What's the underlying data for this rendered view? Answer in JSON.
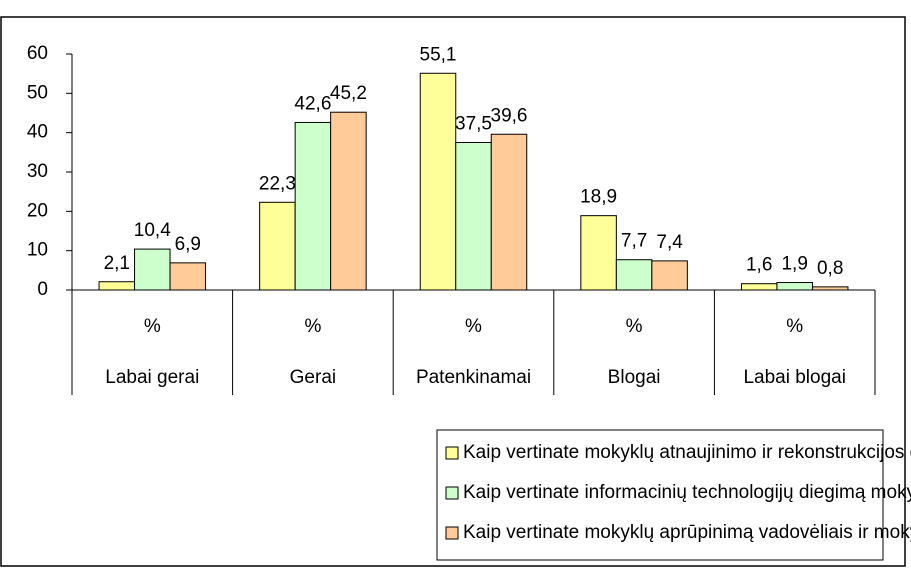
{
  "chart_data": {
    "type": "bar",
    "categories": [
      "Labai gerai",
      "Gerai",
      "Patenkinamai",
      "Blogai",
      "Labai blogai"
    ],
    "sublabels": [
      "%",
      "%",
      "%",
      "%",
      "%"
    ],
    "series": [
      {
        "name": "Kaip vertinate mokyklų atnaujinimo ir rekonstrukcijos eigą?",
        "color": "#ffff99",
        "values": [
          2.1,
          22.3,
          55.1,
          18.9,
          1.6
        ],
        "value_labels": [
          "2,1",
          "22,3",
          "55,1",
          "18,9",
          "1,6"
        ]
      },
      {
        "name": "Kaip vertinate informacinių technologijų diegimą mokyklose?",
        "color": "#ccffcc",
        "values": [
          10.4,
          42.6,
          37.5,
          7.7,
          1.9
        ],
        "value_labels": [
          "10,4",
          "42,6",
          "37,5",
          "7,7",
          "1,9"
        ]
      },
      {
        "name": "Kaip vertinate mokyklų aprūpinimą vadovėliais ir mokymo priemonėmis?",
        "color": "#ffcc99",
        "values": [
          6.9,
          45.2,
          39.6,
          7.4,
          0.8
        ],
        "value_labels": [
          "6,9",
          "45,2",
          "39,6",
          "7,4",
          "0,8"
        ]
      }
    ],
    "ylim": [
      0,
      60
    ],
    "yticks": [
      0,
      10,
      20,
      30,
      40,
      50,
      60
    ],
    "grid": false
  }
}
